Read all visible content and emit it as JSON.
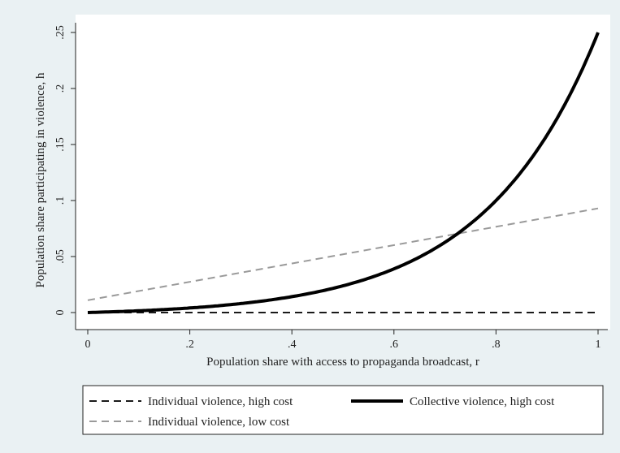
{
  "chart_data": {
    "type": "line",
    "title": "",
    "xlabel": "Population share with access to propaganda broadcast, r",
    "ylabel": "Population share participating in violence, h",
    "xlim": [
      0,
      1
    ],
    "ylim": [
      0,
      0.25
    ],
    "x_ticks": [
      {
        "value": 0,
        "label": "0"
      },
      {
        "value": 0.2,
        "label": ".2"
      },
      {
        "value": 0.4,
        "label": ".4"
      },
      {
        "value": 0.6,
        "label": ".6"
      },
      {
        "value": 0.8,
        "label": ".8"
      },
      {
        "value": 1,
        "label": "1"
      }
    ],
    "y_ticks": [
      {
        "value": 0,
        "label": "0"
      },
      {
        "value": 0.05,
        "label": ".05"
      },
      {
        "value": 0.1,
        "label": ".1"
      },
      {
        "value": 0.15,
        "label": ".15"
      },
      {
        "value": 0.2,
        "label": ".2"
      },
      {
        "value": 0.25,
        "label": ".25"
      }
    ],
    "grid": false,
    "legend_position": "bottom",
    "series": [
      {
        "name": "Individual violence, high cost",
        "style": "dashed",
        "color": "#1a1a1a",
        "x": [
          0,
          0.2,
          0.4,
          0.6,
          0.8,
          1.0
        ],
        "y": [
          0,
          0,
          0,
          0,
          0,
          0
        ]
      },
      {
        "name": "Collective violence, high cost",
        "style": "solid-thick",
        "color": "#000000",
        "x": [
          0,
          0.1,
          0.2,
          0.3,
          0.4,
          0.5,
          0.55,
          0.6,
          0.65,
          0.7,
          0.75,
          0.8,
          0.85,
          0.9,
          0.95,
          1.0
        ],
        "y": [
          0,
          0.001,
          0.0025,
          0.005,
          0.008,
          0.014,
          0.019,
          0.026,
          0.035,
          0.047,
          0.062,
          0.081,
          0.106,
          0.14,
          0.185,
          0.25
        ]
      },
      {
        "name": "Individual violence, low cost",
        "style": "dashed",
        "color": "#9a9a9a",
        "x": [
          0,
          1.0
        ],
        "y": [
          0.011,
          0.093
        ]
      }
    ],
    "legend_rows": [
      [
        0,
        1
      ],
      [
        2
      ]
    ]
  }
}
